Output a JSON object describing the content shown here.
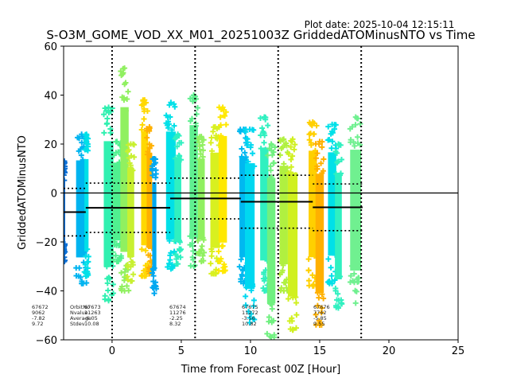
{
  "chart_data": {
    "type": "scatter",
    "title": "S-O3M_GOME_VOD_XX_M01_20251003Z GriddedATOMinusNTO vs Time",
    "subtitle": "Plot date: 2025-10-04 12:15:11",
    "xlabel": "Time from Forecast 00Z [Hour]",
    "ylabel": "GriddedATOMinusNTO",
    "xlim": [
      -3.5,
      25
    ],
    "ylim": [
      -60,
      60
    ],
    "xticks": [
      0,
      5,
      10,
      15,
      20,
      25
    ],
    "yticks": [
      -60,
      -40,
      -20,
      0,
      20,
      40,
      60
    ],
    "grid": false,
    "zero_line": 0,
    "vertical_dotted_lines": [
      0,
      6,
      12,
      18
    ],
    "marker": "plus",
    "stat_labels": [
      "OrbitNo",
      "Nvalue",
      "Average",
      "Stdev"
    ],
    "orbits": [
      {
        "orbit": 67672,
        "nvalue": 9062,
        "average": -7.82,
        "stdev": 9.72,
        "x_range": [
          -3.5,
          -1.9
        ]
      },
      {
        "orbit": 67673,
        "nvalue": 11263,
        "average": -6.05,
        "stdev": 10.08,
        "x_range": [
          -1.9,
          4.2
        ]
      },
      {
        "orbit": 67674,
        "nvalue": 11276,
        "average": -2.25,
        "stdev": 8.32,
        "x_range": [
          4.2,
          9.3
        ]
      },
      {
        "orbit": 67675,
        "nvalue": 11272,
        "average": -3.56,
        "stdev": 10.82,
        "x_range": [
          9.3,
          14.5
        ]
      },
      {
        "orbit": 67676,
        "nvalue": 7742,
        "average": -5.85,
        "stdev": 9.55,
        "x_range": [
          14.5,
          18.1
        ]
      }
    ],
    "point_clusters": [
      {
        "x": [
          -3.5,
          -3.4
        ],
        "ymin": -28,
        "ymax": 13,
        "color": "#0a6fd6"
      },
      {
        "x": [
          -2.6,
          -1.8
        ],
        "ymin": -37,
        "ymax": 24,
        "color": "#00b4f0"
      },
      {
        "x": [
          -2.0,
          -1.7
        ],
        "ymin": -34,
        "ymax": 24,
        "color": "#00e0e8"
      },
      {
        "x": [
          -0.6,
          0.1
        ],
        "ymin": -44,
        "ymax": 35,
        "color": "#30f0b0"
      },
      {
        "x": [
          0.0,
          0.7
        ],
        "ymin": -28,
        "ymax": 21,
        "color": "#50f090"
      },
      {
        "x": [
          0.6,
          1.2
        ],
        "ymin": -40,
        "ymax": 51,
        "color": "#90f060"
      },
      {
        "x": [
          1.1,
          1.6
        ],
        "ymin": -36,
        "ymax": 20,
        "color": "#c8f030"
      },
      {
        "x": [
          2.1,
          2.6
        ],
        "ymin": -34,
        "ymax": 38,
        "color": "#ffd800"
      },
      {
        "x": [
          2.5,
          2.9
        ],
        "ymin": -33,
        "ymax": 27,
        "color": "#ffb000"
      },
      {
        "x": [
          2.9,
          3.2
        ],
        "ymin": -41,
        "ymax": 14,
        "color": "#00a8f0"
      },
      {
        "x": [
          3.9,
          4.6
        ],
        "ymin": -31,
        "ymax": 37,
        "color": "#00e0e8"
      },
      {
        "x": [
          4.5,
          5.0
        ],
        "ymin": -29,
        "ymax": 24,
        "color": "#30f0c0"
      },
      {
        "x": [
          5.6,
          6.2
        ],
        "ymin": -30,
        "ymax": 40,
        "color": "#60f090"
      },
      {
        "x": [
          6.2,
          6.7
        ],
        "ymin": -28,
        "ymax": 23,
        "color": "#90f060"
      },
      {
        "x": [
          7.1,
          7.8
        ],
        "ymin": -33,
        "ymax": 27,
        "color": "#d8f020"
      },
      {
        "x": [
          7.7,
          8.3
        ],
        "ymin": -32,
        "ymax": 35,
        "color": "#ffe800"
      },
      {
        "x": [
          9.2,
          9.8
        ],
        "ymin": -37,
        "ymax": 26,
        "color": "#00b8f0"
      },
      {
        "x": [
          9.6,
          10.3
        ],
        "ymin": -53,
        "ymax": 26,
        "color": "#00d8f0"
      },
      {
        "x": [
          10.7,
          11.3
        ],
        "ymin": -40,
        "ymax": 31,
        "color": "#30f0c0"
      },
      {
        "x": [
          11.2,
          11.8
        ],
        "ymin": -59,
        "ymax": 20,
        "color": "#70f080"
      },
      {
        "x": [
          12.1,
          12.7
        ],
        "ymin": -40,
        "ymax": 22,
        "color": "#b0f040"
      },
      {
        "x": [
          12.7,
          13.4
        ],
        "ymin": -56,
        "ymax": 22,
        "color": "#d0f020"
      },
      {
        "x": [
          14.2,
          14.8
        ],
        "ymin": -38,
        "ymax": 29,
        "color": "#ffd000"
      },
      {
        "x": [
          14.7,
          15.3
        ],
        "ymin": -54,
        "ymax": 21,
        "color": "#ffb000"
      },
      {
        "x": [
          15.6,
          16.2
        ],
        "ymin": -37,
        "ymax": 28,
        "color": "#00e0e8"
      },
      {
        "x": [
          16.1,
          16.6
        ],
        "ymin": -47,
        "ymax": 20,
        "color": "#30f0c0"
      },
      {
        "x": [
          17.2,
          18.0
        ],
        "ymin": -45,
        "ymax": 31,
        "color": "#70f090"
      }
    ]
  }
}
